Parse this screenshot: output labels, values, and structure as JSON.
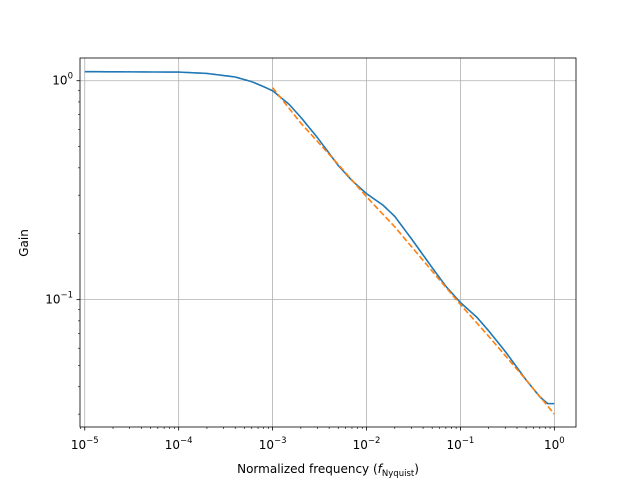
{
  "chart_data": {
    "type": "line",
    "title": "",
    "xlabel": "Normalized frequency (",
    "xlabel_italic": "f",
    "xlabel_subscript": "Nyquist",
    "xlabel_suffix": ")",
    "ylabel": "Gain",
    "xscale": "log",
    "yscale": "log",
    "xlim": [
      8.9e-06,
      1.7
    ],
    "ylim": [
      0.0262,
      1.27
    ],
    "grid": true,
    "legend": "none",
    "x_ticks": [
      {
        "base": "10",
        "exp": "−5"
      },
      {
        "base": "10",
        "exp": "−4"
      },
      {
        "base": "10",
        "exp": "−3"
      },
      {
        "base": "10",
        "exp": "−2"
      },
      {
        "base": "10",
        "exp": "−1"
      },
      {
        "base": "10",
        "exp": "0"
      }
    ],
    "y_ticks": [
      {
        "base": "10",
        "exp": "−1"
      },
      {
        "base": "10",
        "exp": "0"
      }
    ],
    "series": [
      {
        "color": "#1f77b4",
        "style": "solid",
        "x": [
          1e-05,
          0.0001,
          0.0002,
          0.0004,
          0.0006,
          0.0008,
          0.001,
          0.0015,
          0.002,
          0.003,
          0.005,
          0.007,
          0.01,
          0.015,
          0.02,
          0.03,
          0.05,
          0.07,
          0.1,
          0.15,
          0.2,
          0.3,
          0.5,
          0.7,
          0.85,
          1.0
        ],
        "y": [
          1.1,
          1.095,
          1.08,
          1.04,
          0.99,
          0.94,
          0.9,
          0.78,
          0.68,
          0.55,
          0.41,
          0.35,
          0.305,
          0.27,
          0.24,
          0.19,
          0.14,
          0.115,
          0.097,
          0.083,
          0.072,
          0.058,
          0.043,
          0.036,
          0.0335,
          0.0335
        ]
      },
      {
        "color": "#ff7f0e",
        "style": "dashed",
        "x": [
          0.001,
          0.002,
          0.005,
          0.01,
          0.02,
          0.05,
          0.1,
          0.2,
          0.5,
          1.0
        ],
        "y": [
          0.93,
          0.64,
          0.415,
          0.295,
          0.215,
          0.135,
          0.095,
          0.068,
          0.043,
          0.03
        ]
      }
    ]
  }
}
